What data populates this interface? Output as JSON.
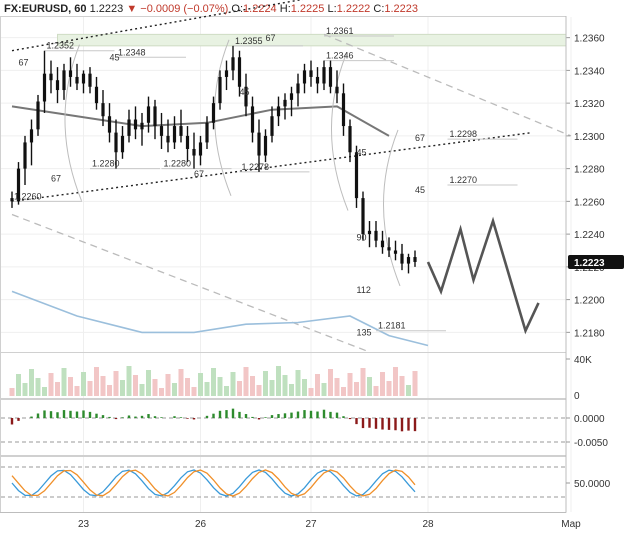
{
  "header": {
    "symbol": "FX:EURUSD, 60",
    "last": "1.2223",
    "change": "−0.0009 (−0.07%)",
    "o_label": "O:",
    "o": "1.2224",
    "h_label": "H:",
    "h": "1.2225",
    "l_label": "L:",
    "l": "1.2222",
    "c_label": "C:",
    "c": "1.2223"
  },
  "chart_data": {
    "type": "line",
    "price_axis": {
      "ticks": [
        "1.2360",
        "1.2340",
        "1.2320",
        "1.2300",
        "1.2280",
        "1.2260",
        "1.2240",
        "1.2220",
        "1.2200",
        "1.2180"
      ],
      "ylim": [
        1.2168,
        1.2372
      ],
      "last_label": "1.2223"
    },
    "x_axis": {
      "ticks": [
        "23",
        "26",
        "27",
        "28",
        "Map"
      ]
    },
    "ohlc": [
      [
        1.2262,
        1.2266,
        1.2256,
        1.226
      ],
      [
        1.226,
        1.2284,
        1.2258,
        1.228
      ],
      [
        1.228,
        1.23,
        1.227,
        1.2296
      ],
      [
        1.2296,
        1.231,
        1.2282,
        1.2304
      ],
      [
        1.2304,
        1.2325,
        1.23,
        1.2321
      ],
      [
        1.2321,
        1.2352,
        1.2314,
        1.2338
      ],
      [
        1.2338,
        1.2346,
        1.2326,
        1.2334
      ],
      [
        1.2334,
        1.2342,
        1.232,
        1.2328
      ],
      [
        1.2328,
        1.2344,
        1.2322,
        1.234
      ],
      [
        1.234,
        1.2348,
        1.233,
        1.2336
      ],
      [
        1.2336,
        1.2344,
        1.2328,
        1.2332
      ],
      [
        1.2332,
        1.234,
        1.2326,
        1.2338
      ],
      [
        1.2338,
        1.2342,
        1.2326,
        1.233
      ],
      [
        1.233,
        1.2336,
        1.2316,
        1.232
      ],
      [
        1.232,
        1.2328,
        1.2306,
        1.2312
      ],
      [
        1.2312,
        1.232,
        1.2296,
        1.2302
      ],
      [
        1.2302,
        1.231,
        1.228,
        1.229
      ],
      [
        1.229,
        1.2306,
        1.2286,
        1.23
      ],
      [
        1.23,
        1.2316,
        1.2296,
        1.231
      ],
      [
        1.231,
        1.2318,
        1.2298,
        1.2304
      ],
      [
        1.2304,
        1.2314,
        1.2294,
        1.2308
      ],
      [
        1.2308,
        1.2324,
        1.2302,
        1.2318
      ],
      [
        1.2318,
        1.2322,
        1.2298,
        1.2306
      ],
      [
        1.2306,
        1.2314,
        1.2292,
        1.23
      ],
      [
        1.23,
        1.231,
        1.229,
        1.2296
      ],
      [
        1.2296,
        1.2312,
        1.2292,
        1.2306
      ],
      [
        1.2306,
        1.2316,
        1.2296,
        1.23
      ],
      [
        1.23,
        1.2306,
        1.2284,
        1.2292
      ],
      [
        1.2292,
        1.2302,
        1.228,
        1.2288
      ],
      [
        1.2288,
        1.23,
        1.2282,
        1.2296
      ],
      [
        1.2296,
        1.2312,
        1.2292,
        1.2308
      ],
      [
        1.2308,
        1.2324,
        1.2304,
        1.232
      ],
      [
        1.232,
        1.234,
        1.2316,
        1.2336
      ],
      [
        1.2336,
        1.2346,
        1.2328,
        1.234
      ],
      [
        1.234,
        1.2355,
        1.2334,
        1.2348
      ],
      [
        1.2348,
        1.2352,
        1.2324,
        1.233
      ],
      [
        1.233,
        1.2338,
        1.2312,
        1.2318
      ],
      [
        1.2318,
        1.2324,
        1.2296,
        1.2302
      ],
      [
        1.2302,
        1.231,
        1.2278,
        1.2288
      ],
      [
        1.2288,
        1.2304,
        1.2284,
        1.23
      ],
      [
        1.23,
        1.2318,
        1.2296,
        1.2312
      ],
      [
        1.2312,
        1.2324,
        1.2306,
        1.2318
      ],
      [
        1.2318,
        1.2326,
        1.231,
        1.2322
      ],
      [
        1.2322,
        1.233,
        1.2312,
        1.2326
      ],
      [
        1.2326,
        1.2338,
        1.2318,
        1.2332
      ],
      [
        1.2332,
        1.2344,
        1.2326,
        1.234
      ],
      [
        1.234,
        1.2346,
        1.233,
        1.2336
      ],
      [
        1.2336,
        1.2342,
        1.2326,
        1.2332
      ],
      [
        1.2332,
        1.2346,
        1.2328,
        1.2342
      ],
      [
        1.2342,
        1.2346,
        1.2326,
        1.233
      ],
      [
        1.233,
        1.234,
        1.232,
        1.2326
      ],
      [
        1.2326,
        1.2332,
        1.23,
        1.2306
      ],
      [
        1.2306,
        1.231,
        1.2284,
        1.229
      ],
      [
        1.229,
        1.2294,
        1.2256,
        1.2262
      ],
      [
        1.2262,
        1.2266,
        1.2236,
        1.224
      ],
      [
        1.224,
        1.2248,
        1.2232,
        1.2242
      ],
      [
        1.2242,
        1.2248,
        1.2232,
        1.2236
      ],
      [
        1.2236,
        1.2242,
        1.2228,
        1.2232
      ],
      [
        1.2232,
        1.2238,
        1.2226,
        1.223
      ],
      [
        1.223,
        1.2236,
        1.2224,
        1.2228
      ],
      [
        1.2228,
        1.2234,
        1.2218,
        1.2222
      ],
      [
        1.2222,
        1.2228,
        1.2216,
        1.2226
      ],
      [
        1.2226,
        1.223,
        1.222,
        1.2223
      ]
    ],
    "ma_slow": [
      [
        0,
        1.2318
      ],
      [
        10,
        1.2312
      ],
      [
        20,
        1.2306
      ],
      [
        30,
        1.2308
      ],
      [
        40,
        1.2316
      ],
      [
        50,
        1.2318
      ],
      [
        58,
        1.23
      ]
    ],
    "ma_long": [
      [
        0,
        1.2205
      ],
      [
        10,
        1.219
      ],
      [
        20,
        1.218
      ],
      [
        28,
        1.218
      ],
      [
        36,
        1.2185
      ],
      [
        44,
        1.2186
      ],
      [
        52,
        1.219
      ],
      [
        58,
        1.2178
      ],
      [
        64,
        1.2172
      ]
    ],
    "forecast": [
      [
        64,
        1.2223
      ],
      [
        66,
        1.2205
      ],
      [
        69,
        1.2243
      ],
      [
        71,
        1.2212
      ],
      [
        74,
        1.2248
      ],
      [
        79,
        1.2181
      ],
      [
        81,
        1.2198
      ]
    ],
    "channel_top": [
      [
        0,
        1.2352
      ],
      [
        57,
        1.2392
      ]
    ],
    "channel_bottom": [
      [
        0,
        1.226
      ],
      [
        80,
        1.2302
      ]
    ],
    "levels": [
      {
        "label": "1.2352",
        "x": 5,
        "price": 1.2352
      },
      {
        "label": "1.2355",
        "x": 34,
        "price": 1.2355
      },
      {
        "label": "1.2361",
        "x": 48,
        "price": 1.2361
      },
      {
        "label": "1.2348",
        "x": 16,
        "price": 1.2348
      },
      {
        "label": "1.2346",
        "x": 48,
        "price": 1.2346
      },
      {
        "label": "1.2298",
        "x": 67,
        "price": 1.2298
      },
      {
        "label": "1.2270",
        "x": 67,
        "price": 1.227
      },
      {
        "label": "1.2280",
        "x": 12,
        "price": 1.228
      },
      {
        "label": "1.2280",
        "x": 23,
        "price": 1.228
      },
      {
        "label": "1.2278",
        "x": 35,
        "price": 1.2278
      },
      {
        "label": "1.2260",
        "x": 0,
        "price": 1.226
      },
      {
        "label": "1.2181",
        "x": 56,
        "price": 1.2181
      }
    ],
    "angle_labels": [
      {
        "label": "67",
        "x": 1,
        "price": 1.2343
      },
      {
        "label": "45",
        "x": 15,
        "price": 1.2346
      },
      {
        "label": "67",
        "x": 39,
        "price": 1.2358
      },
      {
        "label": "45",
        "x": 35,
        "price": 1.2325
      },
      {
        "label": "67",
        "x": 6,
        "price": 1.2272
      },
      {
        "label": "67",
        "x": 28,
        "price": 1.2275
      },
      {
        "label": "45",
        "x": 53,
        "price": 1.2288
      },
      {
        "label": "67",
        "x": 62,
        "price": 1.2297
      },
      {
        "label": "45",
        "x": 62,
        "price": 1.2265
      },
      {
        "label": "90",
        "x": 53,
        "price": 1.2236
      },
      {
        "label": "112",
        "x": 53,
        "price": 1.2204
      },
      {
        "label": "135",
        "x": 53,
        "price": 1.2178
      }
    ],
    "volume_axis": {
      "label": "40K",
      "zero": "0"
    },
    "macd_axis": {
      "ticks": [
        "0.0000",
        "-0.0050"
      ]
    },
    "stoch_axis": {
      "ticks": [
        "50.0000"
      ]
    }
  }
}
